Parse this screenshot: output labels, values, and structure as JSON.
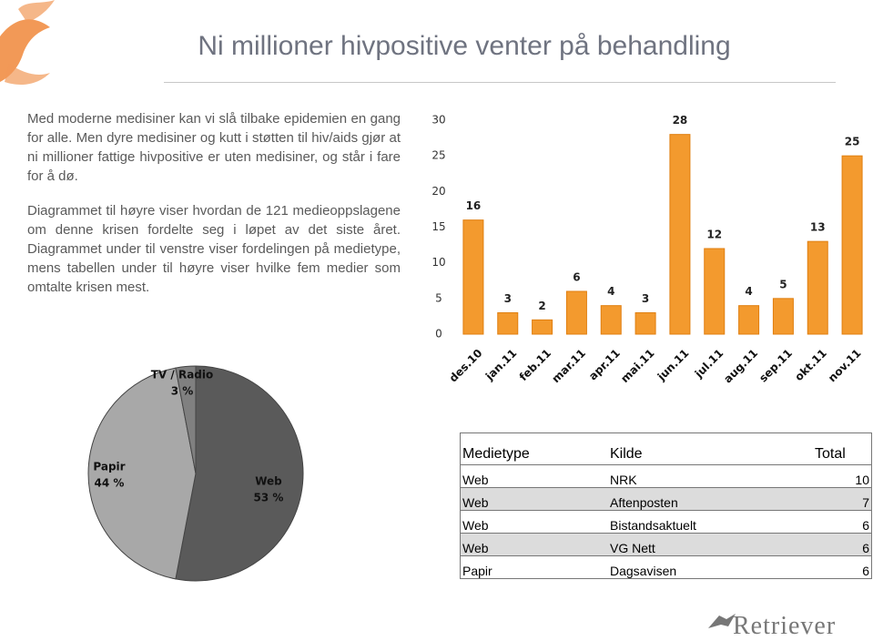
{
  "title": "Ni millioner hivpositive venter på behandling",
  "paragraphs": [
    "Med moderne medisiner kan vi slå tilbake epidemien en gang for alle. Men dyre medisiner og kutt i støtten til hiv/aids gjør at ni millioner fattige hivpositive er uten medisiner, og står i fare for å dø.",
    "Diagrammet til høyre viser hvordan de 121 medie­oppslagene om denne krisen fordelte seg i løpet av det siste året. Diagrammet under til venstre viser for­delingen på medietype, mens tabellen under til høyre viser hvilke fem medier som omtalte krisen mest."
  ],
  "chart_data": [
    {
      "type": "bar",
      "categories": [
        "des.10",
        "jan.11",
        "feb.11",
        "mar.11",
        "apr.11",
        "mai.11",
        "jun.11",
        "jul.11",
        "aug.11",
        "sep.11",
        "okt.11",
        "nov.11"
      ],
      "values": [
        16,
        3,
        2,
        6,
        4,
        3,
        28,
        12,
        4,
        5,
        13,
        25
      ],
      "color": "#f39a2e",
      "ylim": [
        0,
        30
      ],
      "yticks": [
        0,
        5,
        10,
        15,
        20,
        25,
        30
      ]
    },
    {
      "type": "pie",
      "categories": [
        "Web",
        "Papir",
        "TV / Radio"
      ],
      "values": [
        53,
        44,
        3
      ],
      "value_labels": [
        "53 %",
        "44 %",
        "3 %"
      ],
      "colors": [
        "#5a5a5a",
        "#a8a8a8",
        "#808080"
      ]
    }
  ],
  "table": {
    "header": [
      "Medietype",
      "Kilde",
      "Total"
    ],
    "rows": [
      [
        "Web",
        "NRK",
        10
      ],
      [
        "Web",
        "Aftenposten",
        7
      ],
      [
        "Web",
        "Bistandsaktuelt",
        6
      ],
      [
        "Web",
        "VG Nett",
        6
      ],
      [
        "Papir",
        "Dagsavisen",
        6
      ]
    ]
  },
  "logo": "Retriever"
}
